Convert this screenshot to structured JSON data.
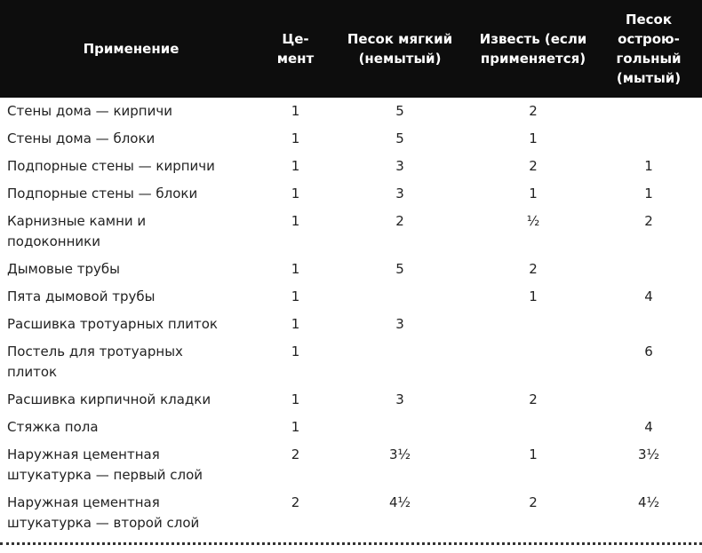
{
  "table": {
    "header": [
      "Применение",
      "Це-\nмент",
      "Песок мягкий\n(немытый)",
      "Известь (если\nприменяется)",
      "Песок\nострою-\nгольный\n(мытый)"
    ],
    "rows": [
      [
        "Стены дома — кирпичи",
        1,
        5,
        2,
        null
      ],
      [
        "Стены дома — блоки",
        1,
        5,
        1,
        null
      ],
      [
        "Подпорные стены — кирпичи",
        1,
        3,
        2,
        1
      ],
      [
        "Подпорные стены — блоки",
        1,
        3,
        1,
        1
      ],
      [
        "Карнизные камни и\nподоконники",
        1,
        2,
        "½",
        2
      ],
      [
        "Дымовые трубы",
        1,
        5,
        2,
        null
      ],
      [
        "Пята дымовой трубы",
        1,
        null,
        1,
        4
      ],
      [
        "Расшивка тротуарных плиток",
        1,
        3,
        null,
        null
      ],
      [
        "Постель для тротуарных\nплиток",
        1,
        null,
        null,
        6
      ],
      [
        "Расшивка кирпичной кладки",
        1,
        3,
        2,
        null
      ],
      [
        "Стяжка пола",
        1,
        null,
        null,
        4
      ],
      [
        "Наружная цементная\nштукатурка — первый слой",
        2,
        "3½",
        1,
        "3½"
      ],
      [
        "Наружная цементная\nштукатурка — второй слой",
        2,
        "4½",
        2,
        "4½"
      ]
    ]
  }
}
